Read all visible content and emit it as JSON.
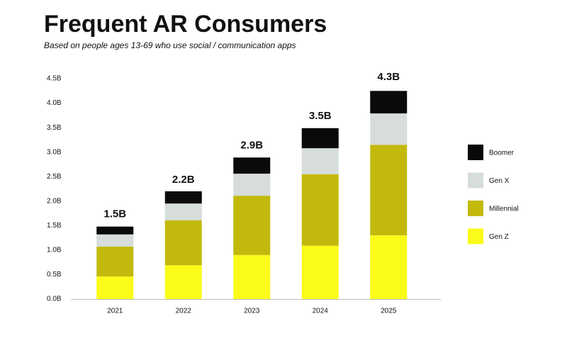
{
  "chart_data": {
    "type": "stacked_bar",
    "title": "Frequent AR Consumers",
    "subtitle": "Based on people ages 13-69 who use social / communication apps",
    "categories": [
      "2021",
      "2022",
      "2023",
      "2024",
      "2025"
    ],
    "series": [
      {
        "name": "Gen Z",
        "color": "#fbfb1a",
        "values": [
          0.46,
          0.69,
          0.9,
          1.09,
          1.3
        ]
      },
      {
        "name": "Millennial",
        "color": "#c3b90c",
        "values": [
          0.61,
          0.92,
          1.21,
          1.46,
          1.85
        ]
      },
      {
        "name": "Gen X",
        "color": "#d6ddda",
        "values": [
          0.25,
          0.34,
          0.45,
          0.53,
          0.64
        ]
      },
      {
        "name": "Boomer",
        "color": "#0a0a0a",
        "values": [
          0.16,
          0.25,
          0.33,
          0.41,
          0.46
        ]
      }
    ],
    "totals": {
      "values": [
        1.5,
        2.2,
        2.9,
        3.5,
        4.3
      ],
      "value_labels": [
        "1.5B",
        "2.2B",
        "2.9B",
        "3.5B",
        "4.3B"
      ]
    },
    "ylim": [
      0,
      4.5
    ],
    "yticks": [
      {
        "value": 0,
        "label": "0.0B"
      },
      {
        "value": 0.5,
        "label": "0.5B"
      },
      {
        "value": 1,
        "label": "1.0B"
      },
      {
        "value": 1.5,
        "label": "1.5B"
      },
      {
        "value": 2,
        "label": "2.0B"
      },
      {
        "value": 2.5,
        "label": "2.5B"
      },
      {
        "value": 3,
        "label": "3.0B"
      },
      {
        "value": 3.5,
        "label": "3.5B"
      },
      {
        "value": 4,
        "label": "4.0B"
      },
      {
        "value": 4.5,
        "label": "4.5B"
      }
    ],
    "grid": false,
    "legend": "right"
  }
}
